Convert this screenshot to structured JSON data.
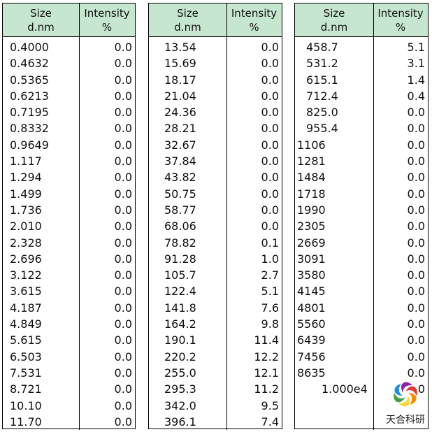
{
  "columns": {
    "size_header": [
      "Size",
      "d.nm"
    ],
    "intensity_header": [
      "Intensity",
      "%"
    ]
  },
  "panels": [
    {
      "size": [
        "0.4000",
        "0.4632",
        "0.5365",
        "0.6213",
        "0.7195",
        "0.8332",
        "0.9649",
        "1.117",
        "1.294",
        "1.499",
        "1.736",
        "2.010",
        "2.328",
        "2.696",
        "3.122",
        "3.615",
        "4.187",
        "4.849",
        "5.615",
        "6.503",
        "7.531",
        "8.721",
        "10.10",
        "11.70"
      ],
      "intensity": [
        "0.0",
        "0.0",
        "0.0",
        "0.0",
        "0.0",
        "0.0",
        "0.0",
        "0.0",
        "0.0",
        "0.0",
        "0.0",
        "0.0",
        "0.0",
        "0.0",
        "0.0",
        "0.0",
        "0.0",
        "0.0",
        "0.0",
        "0.0",
        "0.0",
        "0.0",
        "0.0",
        "0.0"
      ]
    },
    {
      "size": [
        "13.54",
        "15.69",
        "18.17",
        "21.04",
        "24.36",
        "28.21",
        "32.67",
        "37.84",
        "43.82",
        "50.75",
        "58.77",
        "68.06",
        "78.82",
        "91.28",
        "105.7",
        "122.4",
        "141.8",
        "164.2",
        "190.1",
        "220.2",
        "255.0",
        "295.3",
        "342.0",
        "396.1"
      ],
      "intensity": [
        "0.0",
        "0.0",
        "0.0",
        "0.0",
        "0.0",
        "0.0",
        "0.0",
        "0.0",
        "0.0",
        "0.0",
        "0.0",
        "0.0",
        "0.1",
        "1.0",
        "2.7",
        "5.1",
        "7.6",
        "9.8",
        "11.4",
        "12.2",
        "12.1",
        "11.2",
        "9.5",
        "7.4"
      ]
    },
    {
      "size": [
        "458.7",
        "531.2",
        "615.1",
        "712.4",
        "825.0",
        "955.4",
        "1106",
        "1281",
        "1484",
        "1718",
        "1990",
        "2305",
        "2669",
        "3091",
        "3580",
        "4145",
        "4801",
        "5560",
        "6439",
        "7456",
        "8635",
        "1.000e4",
        "",
        ""
      ],
      "intensity": [
        "5.1",
        "3.1",
        "1.4",
        "0.4",
        "0.0",
        "0.0",
        "0.0",
        "0.0",
        "0.0",
        "0.0",
        "0.0",
        "0.0",
        "0.0",
        "0.0",
        "0.0",
        "0.0",
        "0.0",
        "0.0",
        "0.0",
        "0.0",
        "0.0",
        "0",
        "",
        ""
      ]
    }
  ],
  "logo": {
    "text": "天合科研",
    "colors": [
      "#e53935",
      "#fb8c00",
      "#fdd835",
      "#43a047",
      "#1e88e5",
      "#8e24aa"
    ]
  }
}
